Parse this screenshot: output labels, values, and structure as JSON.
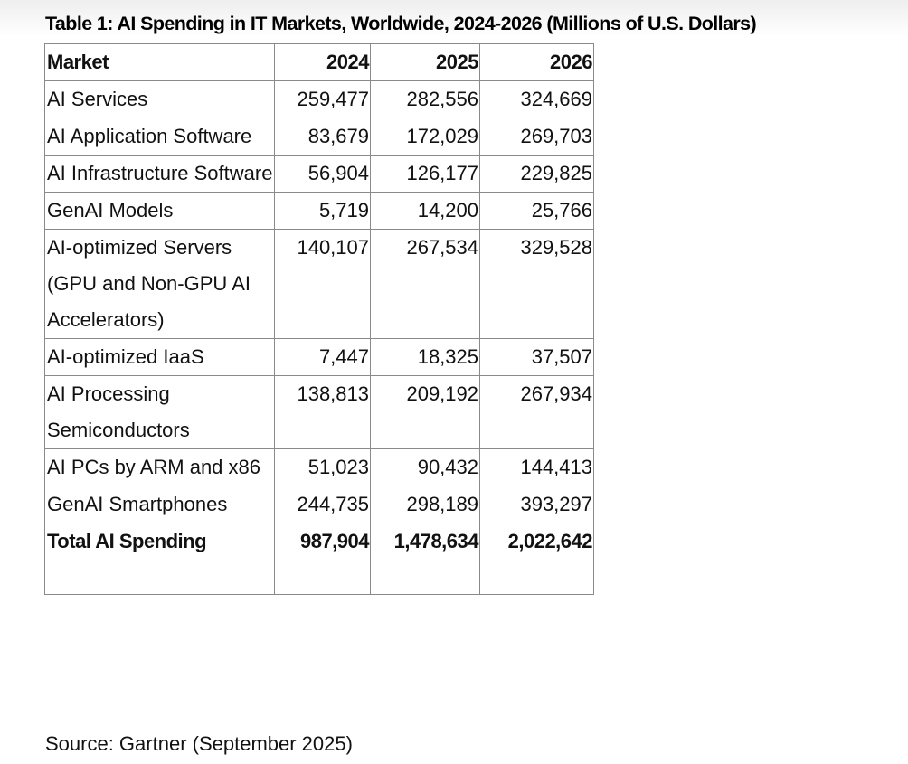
{
  "title": "Table 1: AI Spending in IT Markets, Worldwide, 2024-2026 (Millions of U.S. Dollars)",
  "table": {
    "headers": [
      "Market",
      "2024",
      "2025",
      "2026"
    ],
    "rows": [
      [
        "AI Services",
        "259,477",
        "282,556",
        "324,669"
      ],
      [
        "AI Application Software",
        "83,679",
        "172,029",
        "269,703"
      ],
      [
        "AI Infrastructure Software",
        "56,904",
        "126,177",
        "229,825"
      ],
      [
        "GenAI Models",
        "5,719",
        "14,200",
        "25,766"
      ],
      [
        "AI-optimized Servers (GPU and Non-GPU AI Accelerators)",
        "140,107",
        "267,534",
        "329,528"
      ],
      [
        "AI-optimized IaaS",
        "7,447",
        "18,325",
        "37,507"
      ],
      [
        "AI Processing Semiconductors",
        "138,813",
        "209,192",
        "267,934"
      ],
      [
        "AI PCs by ARM and x86",
        "51,023",
        "90,432",
        "144,413"
      ],
      [
        "GenAI Smartphones",
        "244,735",
        "298,189",
        "393,297"
      ]
    ],
    "total": [
      "Total AI Spending",
      "987,904",
      "1,478,634",
      "2,022,642"
    ]
  },
  "source": "Source: Gartner (September 2025)"
}
